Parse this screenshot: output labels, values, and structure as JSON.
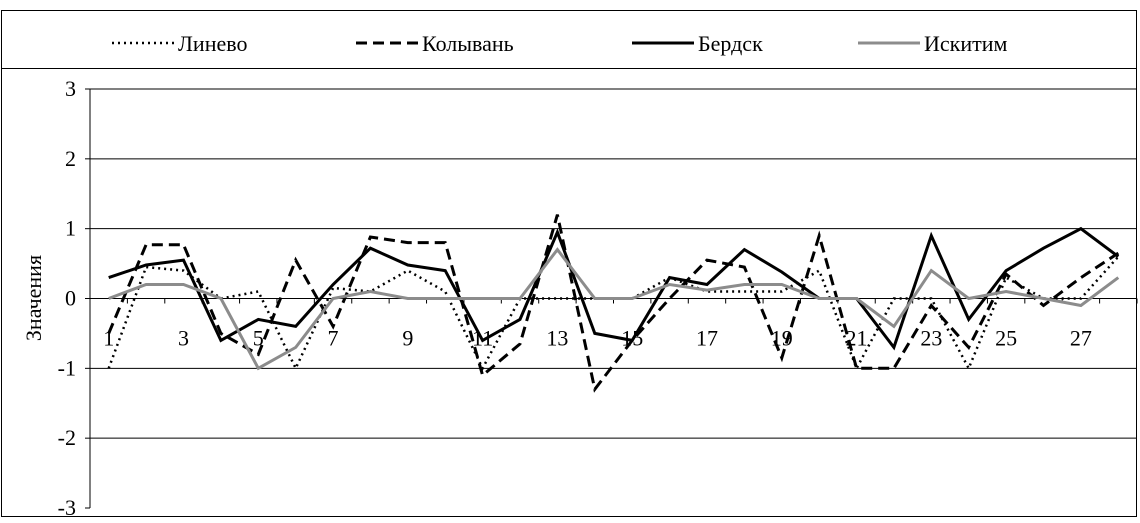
{
  "chart_data": {
    "type": "line",
    "ylabel": "Значения",
    "xlabel": "",
    "ylim": [
      -3,
      3
    ],
    "y_ticks": [
      3,
      2,
      1,
      0,
      -1,
      -2,
      -3
    ],
    "x": [
      1,
      2,
      3,
      4,
      5,
      6,
      7,
      8,
      9,
      10,
      11,
      12,
      13,
      14,
      15,
      16,
      17,
      18,
      19,
      20,
      21,
      22,
      23,
      24,
      25,
      26,
      27,
      28
    ],
    "x_tick_labels": [
      "1",
      "3",
      "5",
      "7",
      "9",
      "11",
      "13",
      "15",
      "17",
      "19",
      "21",
      "23",
      "25",
      "27"
    ],
    "x_tick_values": [
      1,
      3,
      5,
      7,
      9,
      11,
      13,
      15,
      17,
      19,
      21,
      23,
      25,
      27
    ],
    "grid": "horizontal",
    "legend_position": "top",
    "series": [
      {
        "name": "Линево",
        "style": "dotted",
        "color": "#000000",
        "values": [
          -1.0,
          0.45,
          0.4,
          0.0,
          0.1,
          -1.0,
          0.15,
          0.1,
          0.4,
          0.1,
          -1.0,
          0.0,
          0.0,
          0.0,
          0.0,
          0.3,
          0.1,
          0.1,
          0.1,
          0.4,
          -1.0,
          0.0,
          0.0,
          -1.0,
          0.3,
          0.0,
          0.0,
          0.6
        ]
      },
      {
        "name": "Колывань",
        "style": "dashed",
        "color": "#000000",
        "values": [
          -0.5,
          0.77,
          0.77,
          -0.5,
          -0.8,
          0.55,
          -0.4,
          0.88,
          0.8,
          0.8,
          -1.1,
          -0.65,
          1.2,
          -1.3,
          -0.6,
          0.0,
          0.55,
          0.45,
          -0.85,
          0.9,
          -1.0,
          -1.0,
          -0.1,
          -0.7,
          0.35,
          -0.1,
          0.3,
          0.65
        ]
      },
      {
        "name": "Бердск",
        "style": "solid",
        "color": "#000000",
        "values": [
          0.3,
          0.48,
          0.55,
          -0.6,
          -0.3,
          -0.4,
          0.2,
          0.72,
          0.48,
          0.4,
          -0.6,
          -0.3,
          0.95,
          -0.5,
          -0.6,
          0.3,
          0.2,
          0.7,
          0.38,
          0.0,
          0.0,
          -0.7,
          0.9,
          -0.3,
          0.4,
          0.72,
          1.0,
          0.6
        ]
      },
      {
        "name": "Искитим",
        "style": "solid",
        "color": "#8c8c8c",
        "values": [
          0.0,
          0.2,
          0.2,
          0.0,
          -1.0,
          -0.7,
          0.0,
          0.1,
          0.0,
          0.0,
          0.0,
          0.0,
          0.7,
          0.0,
          0.0,
          0.2,
          0.12,
          0.2,
          0.2,
          0.0,
          0.0,
          -0.4,
          0.4,
          0.0,
          0.1,
          0.0,
          -0.1,
          0.3
        ]
      }
    ]
  }
}
